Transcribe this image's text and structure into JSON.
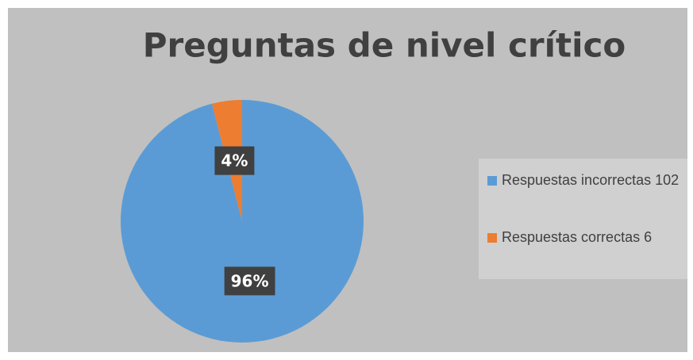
{
  "chart_data": {
    "type": "pie",
    "title": "Preguntas de nivel crítico",
    "categories": [
      "Respuestas incorrectas 102",
      "Respuestas correctas 6"
    ],
    "values": [
      96,
      4
    ],
    "value_labels": [
      "96%",
      "4%"
    ],
    "colors": [
      "#5b9bd5",
      "#ed7d31"
    ],
    "legend": "right"
  }
}
